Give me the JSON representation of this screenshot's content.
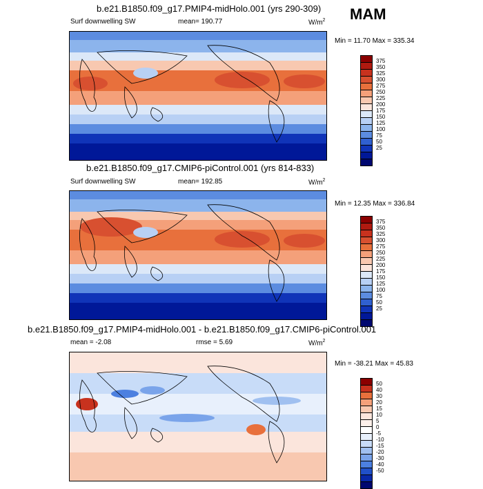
{
  "season": "MAM",
  "panels": [
    {
      "title": "b.e21.B1850.f09_g17.PMIP4-midHolo.001 (yrs 290-309)",
      "left_label": "Surf downwelling SW",
      "center_label": "mean= 190.77",
      "units_base": "W/m",
      "units_exp": "2",
      "minmax": "Min =  11.70 Max = 335.34",
      "colorbar_labels": [
        "375",
        "350",
        "325",
        "300",
        "275",
        "250",
        "225",
        "200",
        "175",
        "150",
        "125",
        "100",
        "75",
        "50",
        "25"
      ]
    },
    {
      "title": "b.e21.B1850.f09_g17.CMIP6-piControl.001 (yrs 814-833)",
      "left_label": "Surf downwelling SW",
      "center_label": "mean= 192.85",
      "units_base": "W/m",
      "units_exp": "2",
      "minmax": "Min = 12.35 Max = 336.84",
      "colorbar_labels": [
        "375",
        "350",
        "325",
        "300",
        "275",
        "250",
        "225",
        "200",
        "175",
        "150",
        "125",
        "100",
        "75",
        "50",
        "25"
      ]
    },
    {
      "title": "b.e21.B1850.f09_g17.PMIP4-midHolo.001 - b.e21.B1850.f09_g17.CMIP6-piControl.001",
      "left_label": "mean =  -2.08",
      "center_label": "rmse =   5.69",
      "units_base": "W/m",
      "units_exp": "2",
      "minmax": "Min = -38.21 Max =  45.83",
      "colorbar_labels": [
        "50",
        "40",
        "30",
        "20",
        "15",
        "10",
        "5",
        "0",
        "-5",
        "-10",
        "-15",
        "-20",
        "-30",
        "-40",
        "-50"
      ]
    }
  ],
  "colors": {
    "abs_scale": [
      "#8b0000",
      "#b01a10",
      "#c8321e",
      "#d85030",
      "#e8703c",
      "#f4a07a",
      "#f8c8b0",
      "#fbe5dc",
      "#dce8f8",
      "#b8d0f4",
      "#8cb4ec",
      "#5c8ce0",
      "#3060d0",
      "#1034b8",
      "#001898",
      "#000870"
    ],
    "diff_scale": [
      "#8b0000",
      "#c8321e",
      "#e8703c",
      "#f4a07a",
      "#f8c8b0",
      "#fbe5dc",
      "#fdf0ea",
      "#e8f0fc",
      "#c8dcf8",
      "#a0c0f0",
      "#7aa4ea",
      "#4c80e0",
      "#2050c8",
      "#0828a8",
      "#000870"
    ]
  }
}
